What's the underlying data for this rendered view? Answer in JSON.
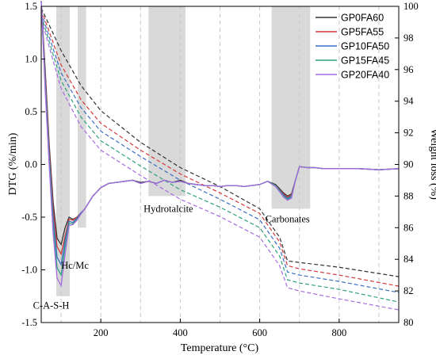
{
  "chart_data": {
    "type": "line",
    "xlabel": "Temperature (°C)",
    "ylabel_left": "DTG (%/min)",
    "ylabel_right": "Weight loss (%)",
    "xlim": [
      50,
      950
    ],
    "ylim_left": [
      -1.5,
      1.5
    ],
    "ylim_right": [
      80,
      100
    ],
    "x_ticks": [
      200,
      400,
      600,
      800
    ],
    "y_ticks_left": [
      -1.5,
      -1.0,
      -0.5,
      0.0,
      0.5,
      1.0,
      1.5
    ],
    "y_ticks_right": [
      80,
      82,
      84,
      86,
      88,
      90,
      92,
      94,
      96,
      98,
      100
    ],
    "grid_vertical_dashed": [
      100,
      200,
      300,
      400,
      500,
      600,
      700,
      800,
      900
    ],
    "legend": {
      "position": "top-right"
    },
    "series_colors": {
      "GP0FA60": "#333333",
      "GP5FA55": "#d43a3a",
      "GP10FA50": "#3a6fc4",
      "GP15FA45": "#2ea37a",
      "GP20FA40": "#a66be0"
    },
    "shaded_regions": [
      {
        "label": "C-A-S-H",
        "x": [
          88,
          122
        ],
        "y": [
          -1.25,
          1.5
        ]
      },
      {
        "label": "Hc/Mc",
        "x": [
          142,
          163
        ],
        "y": [
          -0.6,
          1.5
        ]
      },
      {
        "label": "Hydrotalcite",
        "x": [
          320,
          413
        ],
        "y": [
          -0.3,
          1.5
        ]
      },
      {
        "label": "Carbonates",
        "x": [
          630,
          727
        ],
        "y": [
          -0.42,
          1.5
        ]
      }
    ],
    "region_labels": [
      {
        "text": "C-A-S-H",
        "x": 75,
        "y": -1.34
      },
      {
        "text": "Hc/Mc",
        "x": 135,
        "y": -0.96
      },
      {
        "text": "Hydrotalcite",
        "x": 370,
        "y": -0.42
      },
      {
        "text": "Carbonates",
        "x": 670,
        "y": -0.52
      }
    ],
    "dtg_x": [
      50,
      60,
      70,
      80,
      90,
      100,
      110,
      120,
      130,
      140,
      150,
      160,
      170,
      180,
      200,
      220,
      240,
      260,
      280,
      300,
      320,
      340,
      360,
      380,
      400,
      420,
      440,
      460,
      480,
      500,
      520,
      540,
      560,
      580,
      600,
      620,
      640,
      660,
      670,
      680,
      690,
      700,
      720,
      740,
      760,
      800,
      850,
      900,
      950
    ],
    "series": [
      {
        "name": "GP0FA60",
        "dtg": [
          1.55,
          0.9,
          0.2,
          -0.35,
          -0.7,
          -0.76,
          -0.6,
          -0.5,
          -0.52,
          -0.5,
          -0.46,
          -0.42,
          -0.36,
          -0.3,
          -0.22,
          -0.18,
          -0.17,
          -0.16,
          -0.15,
          -0.17,
          -0.16,
          -0.18,
          -0.15,
          -0.17,
          -0.15,
          -0.18,
          -0.19,
          -0.2,
          -0.2,
          -0.21,
          -0.2,
          -0.2,
          -0.21,
          -0.2,
          -0.19,
          -0.16,
          -0.19,
          -0.27,
          -0.3,
          -0.28,
          -0.15,
          -0.02,
          -0.03,
          -0.03,
          -0.04,
          -0.04,
          -0.04,
          -0.05,
          -0.04
        ],
        "wl_x": [
          50,
          100,
          150,
          200,
          300,
          400,
          500,
          600,
          650,
          670,
          700,
          800,
          950
        ],
        "wl": [
          99.9,
          97.2,
          95.0,
          93.4,
          91.4,
          89.8,
          88.6,
          87.2,
          85.4,
          83.9,
          83.8,
          83.5,
          82.9
        ]
      },
      {
        "name": "GP5FA55",
        "dtg": [
          1.55,
          0.85,
          0.15,
          -0.42,
          -0.78,
          -0.85,
          -0.68,
          -0.52,
          -0.53,
          -0.5,
          -0.46,
          -0.42,
          -0.36,
          -0.3,
          -0.22,
          -0.18,
          -0.17,
          -0.16,
          -0.15,
          -0.18,
          -0.16,
          -0.18,
          -0.15,
          -0.17,
          -0.16,
          -0.18,
          -0.19,
          -0.2,
          -0.2,
          -0.21,
          -0.2,
          -0.2,
          -0.21,
          -0.2,
          -0.19,
          -0.16,
          -0.2,
          -0.28,
          -0.31,
          -0.29,
          -0.15,
          -0.02,
          -0.03,
          -0.03,
          -0.04,
          -0.04,
          -0.04,
          -0.05,
          -0.04
        ],
        "wl_x": [
          50,
          100,
          150,
          200,
          300,
          400,
          500,
          600,
          650,
          670,
          700,
          800,
          950
        ],
        "wl": [
          99.8,
          96.3,
          94.1,
          92.6,
          90.9,
          89.4,
          88.2,
          86.9,
          85.1,
          83.6,
          83.4,
          83.0,
          82.3
        ]
      },
      {
        "name": "GP10FA50",
        "dtg": [
          1.55,
          0.8,
          0.1,
          -0.5,
          -0.88,
          -0.95,
          -0.72,
          -0.54,
          -0.55,
          -0.51,
          -0.46,
          -0.42,
          -0.36,
          -0.3,
          -0.22,
          -0.18,
          -0.17,
          -0.16,
          -0.15,
          -0.18,
          -0.16,
          -0.18,
          -0.15,
          -0.17,
          -0.16,
          -0.18,
          -0.19,
          -0.2,
          -0.2,
          -0.21,
          -0.2,
          -0.2,
          -0.21,
          -0.2,
          -0.19,
          -0.16,
          -0.2,
          -0.29,
          -0.32,
          -0.3,
          -0.15,
          -0.02,
          -0.03,
          -0.03,
          -0.04,
          -0.04,
          -0.04,
          -0.05,
          -0.04
        ],
        "wl_x": [
          50,
          100,
          150,
          200,
          300,
          400,
          500,
          600,
          650,
          670,
          700,
          800,
          950
        ],
        "wl": [
          99.6,
          95.8,
          93.6,
          92.1,
          90.5,
          89.0,
          87.8,
          86.5,
          84.7,
          83.2,
          83.0,
          82.6,
          81.9
        ]
      },
      {
        "name": "GP15FA45",
        "dtg": [
          1.55,
          0.75,
          0.05,
          -0.58,
          -0.98,
          -1.05,
          -0.78,
          -0.56,
          -0.56,
          -0.52,
          -0.47,
          -0.42,
          -0.36,
          -0.3,
          -0.22,
          -0.18,
          -0.17,
          -0.16,
          -0.15,
          -0.18,
          -0.16,
          -0.18,
          -0.15,
          -0.17,
          -0.16,
          -0.18,
          -0.19,
          -0.2,
          -0.2,
          -0.21,
          -0.2,
          -0.2,
          -0.21,
          -0.2,
          -0.19,
          -0.16,
          -0.2,
          -0.3,
          -0.33,
          -0.31,
          -0.15,
          -0.02,
          -0.03,
          -0.03,
          -0.04,
          -0.04,
          -0.04,
          -0.05,
          -0.04
        ],
        "wl_x": [
          50,
          100,
          150,
          200,
          300,
          400,
          500,
          600,
          650,
          670,
          700,
          800,
          950
        ],
        "wl": [
          99.4,
          95.3,
          93.0,
          91.5,
          89.9,
          88.4,
          87.3,
          86.0,
          84.2,
          82.7,
          82.5,
          82.1,
          81.3
        ]
      },
      {
        "name": "GP20FA40",
        "dtg": [
          1.55,
          0.7,
          0.0,
          -0.65,
          -1.08,
          -1.15,
          -0.85,
          -0.58,
          -0.57,
          -0.53,
          -0.47,
          -0.42,
          -0.36,
          -0.3,
          -0.22,
          -0.18,
          -0.17,
          -0.16,
          -0.15,
          -0.18,
          -0.16,
          -0.18,
          -0.15,
          -0.17,
          -0.16,
          -0.18,
          -0.19,
          -0.2,
          -0.2,
          -0.21,
          -0.2,
          -0.2,
          -0.21,
          -0.2,
          -0.19,
          -0.16,
          -0.21,
          -0.31,
          -0.34,
          -0.32,
          -0.15,
          -0.02,
          -0.03,
          -0.03,
          -0.04,
          -0.04,
          -0.04,
          -0.05,
          -0.04
        ],
        "wl_x": [
          50,
          100,
          150,
          200,
          300,
          400,
          500,
          600,
          650,
          670,
          700,
          800,
          950
        ],
        "wl": [
          99.2,
          94.8,
          92.4,
          90.9,
          89.3,
          87.8,
          86.7,
          85.4,
          83.6,
          82.2,
          82.0,
          81.5,
          80.8
        ]
      }
    ]
  }
}
